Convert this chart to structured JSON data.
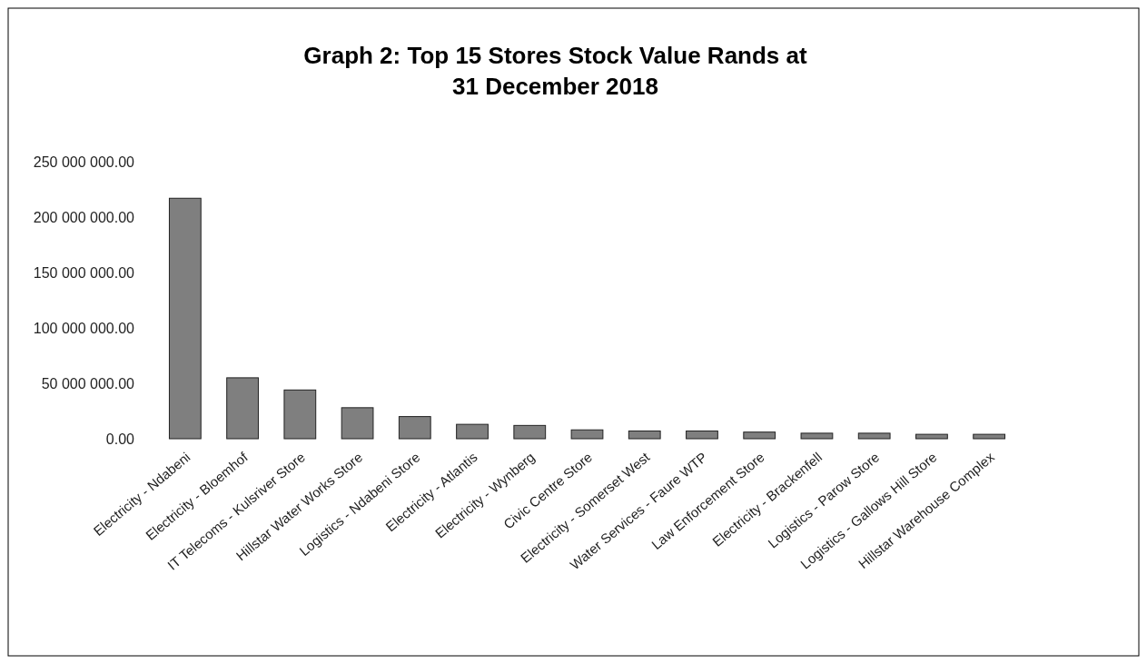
{
  "chart_data": {
    "type": "bar",
    "title": "Graph 2: Top 15 Stores Stock Value Rands at 31 December 2018",
    "categories": [
      "Electricity - Ndabeni",
      "Electricity - Bloemhof",
      "IT Telecoms - Kulsriver Store",
      "Hillstar Water Works Store",
      "Logistics - Ndabeni Store",
      "Electricity - Atlantis",
      "Electricity - Wynberg",
      "Civic Centre Store",
      "Electricity - Somerset West",
      "Water Services - Faure WTP",
      "Law Enforcement Store",
      "Electricity - Brackenfell",
      "Logistics - Parow Store",
      "Logistics - Gallows Hill Store",
      "Hillstar Warehouse Complex"
    ],
    "values": [
      217000000,
      55000000,
      44000000,
      28000000,
      20000000,
      13000000,
      12000000,
      8000000,
      7000000,
      7000000,
      6000000,
      5000000,
      5000000,
      4000000,
      4000000
    ],
    "color": "#7f7f7f",
    "ylim": [
      0,
      250000000
    ],
    "yticks": [
      {
        "value": 0,
        "label": "0.00"
      },
      {
        "value": 50000000,
        "label": "50 000 000.00"
      },
      {
        "value": 100000000,
        "label": "100 000 000.00"
      },
      {
        "value": 150000000,
        "label": "150 000 000.00"
      },
      {
        "value": 200000000,
        "label": "200 000 000.00"
      },
      {
        "value": 250000000,
        "label": "250 000 000.00"
      }
    ],
    "grid": false
  }
}
